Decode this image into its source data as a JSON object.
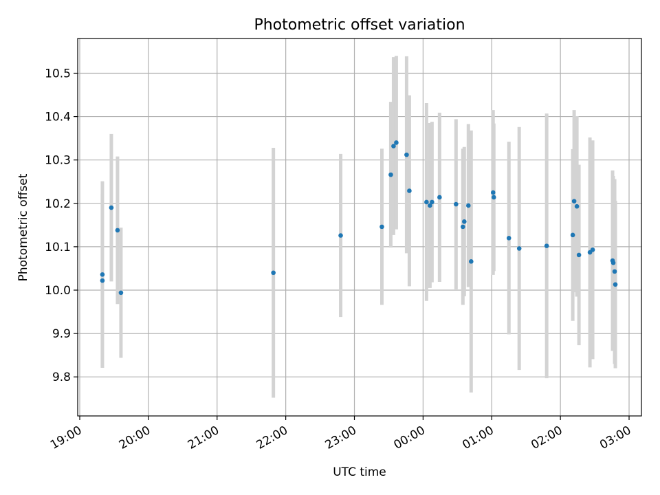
{
  "chart_data": {
    "type": "scatter",
    "title": "Photometric offset variation",
    "xlabel": "UTC time",
    "ylabel": "Photometric offset",
    "x_ticks": [
      "19:00",
      "20:00",
      "21:00",
      "22:00",
      "23:00",
      "00:00",
      "01:00",
      "02:00",
      "03:00"
    ],
    "y_ticks": [
      "9.8",
      "9.9",
      "10.0",
      "10.1",
      "10.2",
      "10.3",
      "10.4",
      "10.5"
    ],
    "xlim": [
      -0.03,
      8.18
    ],
    "ylim": [
      9.71,
      10.58
    ],
    "grid": true,
    "legend": "none",
    "colors": {
      "points": "#1f77b4",
      "error_bars": "#d3d3d3"
    },
    "series": [
      {
        "points": [
          {
            "x": 0.33,
            "y": 10.036,
            "err": 0.215
          },
          {
            "x": 0.33,
            "y": 10.022,
            "err": 0.2
          },
          {
            "x": 0.46,
            "y": 10.19,
            "err": 0.17
          },
          {
            "x": 0.55,
            "y": 10.138,
            "err": 0.17
          },
          {
            "x": 0.6,
            "y": 9.994,
            "err": 0.15
          },
          {
            "x": 2.82,
            "y": 10.04,
            "err": 0.288
          },
          {
            "x": 3.8,
            "y": 10.126,
            "err": 0.188
          },
          {
            "x": 4.4,
            "y": 10.146,
            "err": 0.18
          },
          {
            "x": 4.53,
            "y": 10.266,
            "err": 0.168
          },
          {
            "x": 4.57,
            "y": 10.332,
            "err": 0.205
          },
          {
            "x": 4.61,
            "y": 10.34,
            "err": 0.2
          },
          {
            "x": 4.76,
            "y": 10.312,
            "err": 0.227
          },
          {
            "x": 4.8,
            "y": 10.229,
            "err": 0.22
          },
          {
            "x": 5.05,
            "y": 10.203,
            "err": 0.228
          },
          {
            "x": 5.1,
            "y": 10.195,
            "err": 0.19
          },
          {
            "x": 5.13,
            "y": 10.203,
            "err": 0.185
          },
          {
            "x": 5.24,
            "y": 10.214,
            "err": 0.195
          },
          {
            "x": 5.48,
            "y": 10.198,
            "err": 0.196
          },
          {
            "x": 5.58,
            "y": 10.146,
            "err": 0.18
          },
          {
            "x": 5.6,
            "y": 10.158,
            "err": 0.172
          },
          {
            "x": 5.66,
            "y": 10.195,
            "err": 0.188
          },
          {
            "x": 5.7,
            "y": 10.066,
            "err": 0.302
          },
          {
            "x": 6.02,
            "y": 10.225,
            "err": 0.19
          },
          {
            "x": 6.03,
            "y": 10.214,
            "err": 0.17
          },
          {
            "x": 6.25,
            "y": 10.12,
            "err": 0.222
          },
          {
            "x": 6.4,
            "y": 10.096,
            "err": 0.28
          },
          {
            "x": 6.8,
            "y": 10.102,
            "err": 0.305
          },
          {
            "x": 7.18,
            "y": 10.127,
            "err": 0.198
          },
          {
            "x": 7.2,
            "y": 10.205,
            "err": 0.21
          },
          {
            "x": 7.24,
            "y": 10.193,
            "err": 0.208
          },
          {
            "x": 7.27,
            "y": 10.081,
            "err": 0.208
          },
          {
            "x": 7.43,
            "y": 10.087,
            "err": 0.265
          },
          {
            "x": 7.47,
            "y": 10.093,
            "err": 0.252
          },
          {
            "x": 7.76,
            "y": 10.068,
            "err": 0.208
          },
          {
            "x": 7.77,
            "y": 10.063,
            "err": 0.2
          },
          {
            "x": 7.79,
            "y": 10.043,
            "err": 0.213
          },
          {
            "x": 7.8,
            "y": 10.013,
            "err": 0.193
          }
        ]
      }
    ]
  }
}
